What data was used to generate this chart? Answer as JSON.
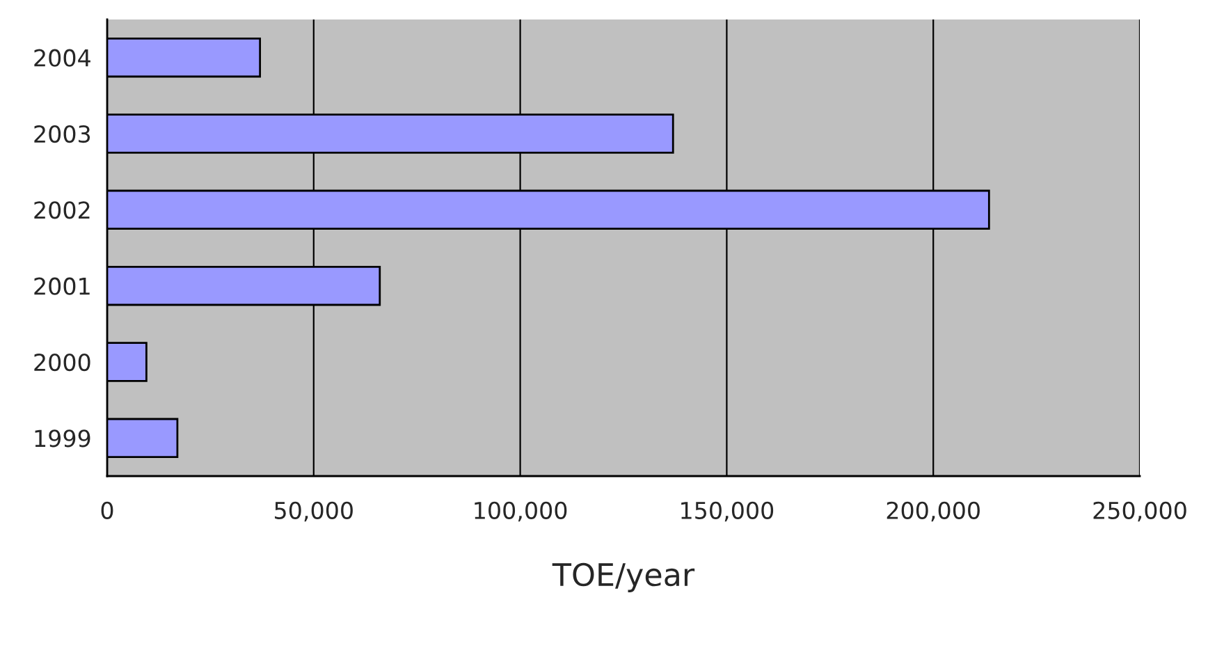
{
  "chart_data": {
    "type": "bar",
    "orientation": "horizontal",
    "xlabel": "TOE/year",
    "categories": [
      "2004",
      "2003",
      "2002",
      "2001",
      "2000",
      "1999"
    ],
    "values": [
      37000,
      137000,
      213500,
      66000,
      9500,
      17000
    ],
    "color": "#9999ff",
    "xlim": [
      0,
      250000
    ],
    "xticks": [
      {
        "value": 0,
        "label": "0"
      },
      {
        "value": 50000,
        "label": "50,000"
      },
      {
        "value": 100000,
        "label": "100,000"
      },
      {
        "value": 150000,
        "label": "150,000"
      },
      {
        "value": 200000,
        "label": "200,000"
      },
      {
        "value": 250000,
        "label": "250,000"
      }
    ],
    "grid": "x"
  }
}
